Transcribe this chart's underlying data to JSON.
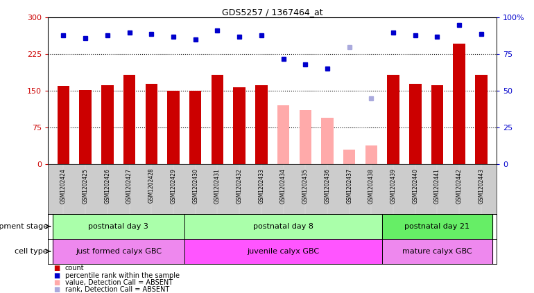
{
  "title": "GDS5257 / 1367464_at",
  "samples": [
    "GSM1202424",
    "GSM1202425",
    "GSM1202426",
    "GSM1202427",
    "GSM1202428",
    "GSM1202429",
    "GSM1202430",
    "GSM1202431",
    "GSM1202432",
    "GSM1202433",
    "GSM1202434",
    "GSM1202435",
    "GSM1202436",
    "GSM1202437",
    "GSM1202438",
    "GSM1202439",
    "GSM1202440",
    "GSM1202441",
    "GSM1202442",
    "GSM1202443"
  ],
  "counts": [
    160,
    152,
    162,
    183,
    165,
    150,
    150,
    183,
    157,
    162,
    120,
    110,
    95,
    30,
    38,
    183,
    165,
    162,
    247,
    183
  ],
  "absent_flags": [
    false,
    false,
    false,
    false,
    false,
    false,
    false,
    false,
    false,
    false,
    true,
    true,
    true,
    true,
    true,
    false,
    false,
    false,
    false,
    false
  ],
  "percentile_ranks": [
    88,
    86,
    88,
    90,
    89,
    87,
    85,
    91,
    87,
    88,
    72,
    68,
    65,
    80,
    45,
    90,
    88,
    87,
    95,
    89
  ],
  "absent_rank_flags": [
    false,
    false,
    false,
    false,
    false,
    false,
    false,
    false,
    false,
    false,
    false,
    false,
    false,
    true,
    true,
    false,
    false,
    false,
    false,
    false
  ],
  "ylim_left": [
    0,
    300
  ],
  "ylim_right": [
    0,
    100
  ],
  "yticks_left": [
    0,
    75,
    150,
    225,
    300
  ],
  "yticks_right": [
    0,
    25,
    50,
    75,
    100
  ],
  "bar_color_present": "#cc0000",
  "bar_color_absent": "#ffaaaa",
  "dot_color_present": "#0000cc",
  "dot_color_absent": "#aaaadd",
  "dev_stages": [
    {
      "label": "postnatal day 3",
      "start": 0,
      "end": 6,
      "color": "#aaffaa"
    },
    {
      "label": "postnatal day 8",
      "start": 6,
      "end": 15,
      "color": "#aaffaa"
    },
    {
      "label": "postnatal day 21",
      "start": 15,
      "end": 20,
      "color": "#66ee66"
    }
  ],
  "cell_types": [
    {
      "label": "just formed calyx GBC",
      "start": 0,
      "end": 6,
      "color": "#ee88ee"
    },
    {
      "label": "juvenile calyx GBC",
      "start": 6,
      "end": 15,
      "color": "#ff55ff"
    },
    {
      "label": "mature calyx GBC",
      "start": 15,
      "end": 20,
      "color": "#ee88ee"
    }
  ],
  "legend_items": [
    {
      "label": "count",
      "color": "#cc0000"
    },
    {
      "label": "percentile rank within the sample",
      "color": "#0000cc"
    },
    {
      "label": "value, Detection Call = ABSENT",
      "color": "#ffaaaa"
    },
    {
      "label": "rank, Detection Call = ABSENT",
      "color": "#aaaadd"
    }
  ],
  "dev_label": "development stage",
  "cell_label": "cell type"
}
